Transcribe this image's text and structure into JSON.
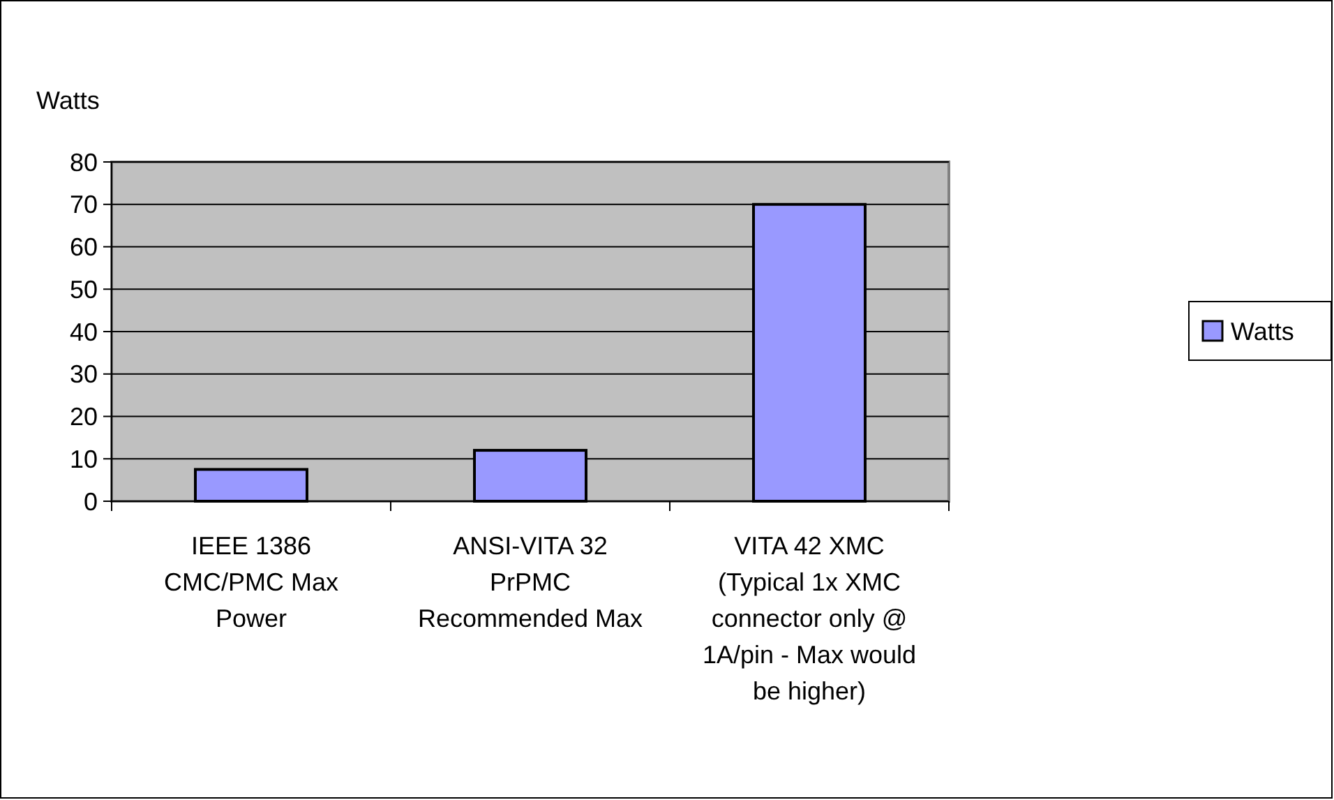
{
  "chart_data": {
    "type": "bar",
    "ylabel": "Watts",
    "categories": [
      "IEEE 1386 CMC/PMC Max Power",
      "ANSI-VITA 32 PrPMC Recommended Max",
      "VITA 42 XMC (Typical 1x XMC connector only @ 1A/pin - Max would be higher)"
    ],
    "series": [
      {
        "name": "Watts",
        "color": "#9999ff",
        "values": [
          7.5,
          12,
          70
        ]
      }
    ],
    "ylim": [
      0,
      80
    ],
    "yticks": [
      0,
      10,
      20,
      30,
      40,
      50,
      60,
      70,
      80
    ],
    "grid": "y",
    "legend": "right"
  }
}
